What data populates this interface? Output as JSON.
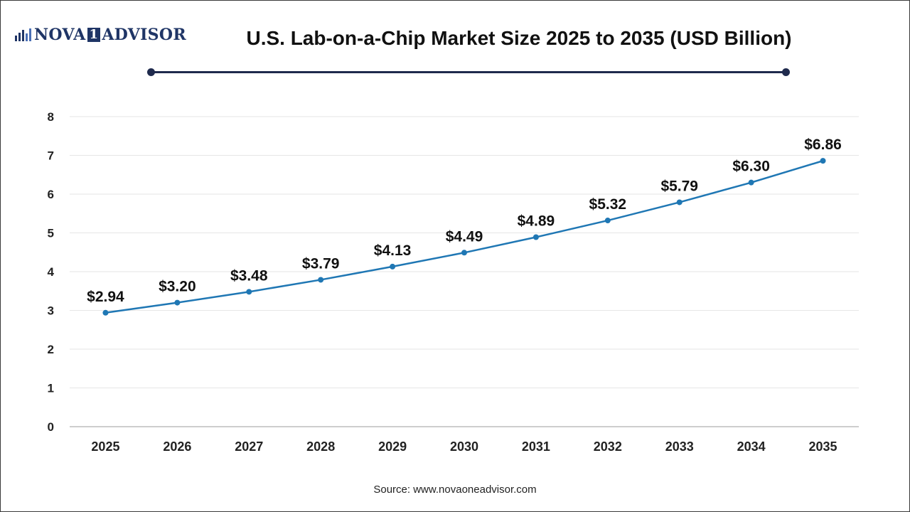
{
  "header": {
    "logo_text_left": "NOVA",
    "logo_text_box": "1",
    "logo_text_right": "ADVISOR",
    "title": "U.S. Lab-on-a-Chip Market Size 2025 to 2035 (USD Billion)"
  },
  "footer": {
    "source": "Source: www.novaoneadvisor.com"
  },
  "colors": {
    "line": "#1f77b4",
    "brand": "#1f3566",
    "grid": "#e6e6e6"
  },
  "chart_data": {
    "type": "line",
    "title": "U.S. Lab-on-a-Chip Market Size 2025 to 2035 (USD Billion)",
    "xlabel": "",
    "ylabel": "",
    "x": [
      "2025",
      "2026",
      "2027",
      "2028",
      "2029",
      "2030",
      "2031",
      "2032",
      "2033",
      "2034",
      "2035"
    ],
    "series": [
      {
        "values": [
          2.94,
          3.2,
          3.48,
          3.79,
          4.13,
          4.49,
          4.89,
          5.32,
          5.79,
          6.3,
          6.86
        ],
        "labels": [
          "$2.94",
          "$3.20",
          "$3.48",
          "$3.79",
          "$4.13",
          "$4.49",
          "$4.89",
          "$5.32",
          "$5.79",
          "$6.30",
          "$6.86"
        ]
      }
    ],
    "ylim": [
      0,
      8
    ],
    "yticks": [
      0,
      1,
      2,
      3,
      4,
      5,
      6,
      7,
      8
    ],
    "grid": true,
    "legend": "none"
  }
}
